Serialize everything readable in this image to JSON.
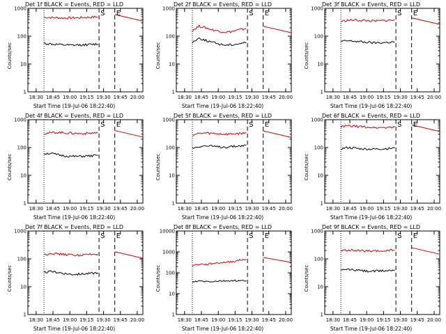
{
  "charts": [
    {
      "id": "1f",
      "title": "Det 1f BLACK = Events, RED = LLD",
      "ylabel": "Counts/sec",
      "xlabel": "Start Time (19-Jul-06 18:22:40)",
      "yticks": [
        "1",
        "10",
        "100",
        "1000"
      ],
      "xticks": [
        "18:30",
        "18:45",
        "19:00",
        "19:15",
        "19:30",
        "19:45",
        "20:00"
      ]
    },
    {
      "id": "2f",
      "title": "Det 2f BLACK = Events, RED = LLD",
      "ylabel": "Counts/sec",
      "xlabel": "Start Time (19-Jul-06 18:22:40)",
      "yticks": [
        "1",
        "10",
        "100",
        "1000"
      ],
      "xticks": [
        "18:30",
        "18:45",
        "19:00",
        "19:15",
        "19:30",
        "19:45",
        "20:00"
      ]
    },
    {
      "id": "3f",
      "title": "Det 3f BLACK = Events, RED = LLD",
      "ylabel": "Counts/sec",
      "xlabel": "Start Time (19-Jul-06 18:22:40)",
      "yticks": [
        "1",
        "10",
        "100",
        "1000"
      ],
      "xticks": [
        "18:30",
        "18:45",
        "19:00",
        "19:15",
        "19:30",
        "19:45",
        "20:00"
      ]
    },
    {
      "id": "4f",
      "title": "Det 4f BLACK = Events, RED = LLD",
      "ylabel": "Counts/sec",
      "xlabel": "Start Time (19-Jul-06 18:22:40)",
      "yticks": [
        "1",
        "10",
        "100",
        "1000"
      ],
      "xticks": [
        "18:30",
        "18:45",
        "19:00",
        "19:15",
        "19:30",
        "19:45",
        "20:00"
      ]
    },
    {
      "id": "5f",
      "title": "Det 5f BLACK = Events, RED = LLD",
      "ylabel": "Counts/sec",
      "xlabel": "Start Time (19-Jul-06 18:22:40)",
      "yticks": [
        "1",
        "10",
        "100",
        "1000"
      ],
      "xticks": [
        "18:30",
        "18:45",
        "19:00",
        "19:15",
        "19:30",
        "19:45",
        "20:00"
      ]
    },
    {
      "id": "6f",
      "title": "Det 6f BLACK = Events, RED = LLD",
      "ylabel": "Counts/sec",
      "xlabel": "Start Time (19-Jul-06 18:22:40)",
      "yticks": [
        "1",
        "10",
        "100",
        "1000"
      ],
      "xticks": [
        "18:30",
        "18:45",
        "19:00",
        "19:15",
        "19:30",
        "19:45",
        "20:00"
      ]
    },
    {
      "id": "7f",
      "title": "Det 7f BLACK = Events, RED = LLD",
      "ylabel": "Counts/sec",
      "xlabel": "Start Time (19-Jul-06 18:22:40)",
      "yticks": [
        "1",
        "10",
        "100",
        "1000"
      ],
      "xticks": [
        "18:30",
        "18:45",
        "19:00",
        "19:15",
        "19:30",
        "19:45",
        "20:00"
      ]
    },
    {
      "id": "8f",
      "title": "Det 8f BLACK = Events, RED = LLD",
      "ylabel": "Counts/sec",
      "xlabel": "Start Time (19-Jul-06 18:22:40)",
      "yticks": [
        "1",
        "10",
        "100",
        "1000",
        "10000"
      ],
      "xticks": [
        "18:30",
        "18:45",
        "19:00",
        "19:15",
        "19:30",
        "19:45",
        "20:00"
      ]
    },
    {
      "id": "9f",
      "title": "Det 9f BLACK = Events, RED = LLD",
      "ylabel": "Counts/sec",
      "xlabel": "Start Time (19-Jul-06 18:22:40)",
      "yticks": [
        "1",
        "10",
        "100",
        "1000"
      ],
      "xticks": [
        "18:30",
        "18:45",
        "19:00",
        "19:15",
        "19:30",
        "19:45",
        "20:00"
      ]
    }
  ],
  "chart_data": [
    {
      "type": "line",
      "panel": "1f",
      "xunit": "time",
      "x_range": [
        "18:22:40",
        "20:05"
      ],
      "ylog": true,
      "ylim": [
        1,
        1000
      ],
      "series": [
        {
          "color": "#cc0000",
          "values": [
            480,
            470,
            460,
            450,
            455,
            460,
            470,
            480,
            500
          ]
        },
        {
          "color": "#000000",
          "values": [
            55,
            52,
            50,
            48,
            47,
            48,
            49,
            50,
            52
          ]
        }
      ],
      "markers": [
        {
          "label": "S",
          "x": "19:26"
        },
        {
          "label": "E",
          "x": "19:40"
        }
      ],
      "vlines_dotted": [
        "18:37"
      ],
      "vlines_dashed": [
        "19:26",
        "19:40"
      ]
    },
    {
      "type": "line",
      "panel": "2f",
      "xunit": "time",
      "x_range": [
        "18:22:40",
        "20:05"
      ],
      "ylog": true,
      "ylim": [
        1,
        1000
      ],
      "series": [
        {
          "color": "#cc0000",
          "values": [
            160,
            230,
            200,
            170,
            150,
            140,
            150,
            170,
            190
          ]
        },
        {
          "color": "#000000",
          "values": [
            60,
            85,
            70,
            60,
            52,
            48,
            50,
            55,
            60
          ]
        }
      ],
      "markers": [
        {
          "label": "S",
          "x": "19:26"
        },
        {
          "label": "E",
          "x": "19:40"
        }
      ],
      "vlines_dotted": [
        "18:37"
      ],
      "vlines_dashed": [
        "19:26",
        "19:40"
      ]
    },
    {
      "type": "line",
      "panel": "3f",
      "xunit": "time",
      "x_range": [
        "18:22:40",
        "20:05"
      ],
      "ylog": true,
      "ylim": [
        1,
        1000
      ],
      "series": [
        {
          "color": "#cc0000",
          "values": [
            340,
            370,
            380,
            370,
            360,
            350,
            360,
            370,
            380
          ]
        },
        {
          "color": "#000000",
          "values": [
            65,
            68,
            66,
            63,
            60,
            58,
            58,
            60,
            62
          ]
        }
      ],
      "markers": [
        {
          "label": "S",
          "x": "19:26"
        },
        {
          "label": "E",
          "x": "19:40"
        }
      ],
      "vlines_dotted": [
        "18:37"
      ],
      "vlines_dashed": [
        "19:26",
        "19:40"
      ]
    },
    {
      "type": "line",
      "panel": "4f",
      "xunit": "time",
      "x_range": [
        "18:22:40",
        "20:05"
      ],
      "ylog": true,
      "ylim": [
        1,
        1000
      ],
      "series": [
        {
          "color": "#cc0000",
          "values": [
            320,
            340,
            350,
            340,
            330,
            320,
            320,
            330,
            340
          ]
        },
        {
          "color": "#000000",
          "values": [
            60,
            62,
            55,
            50,
            48,
            48,
            49,
            50,
            52
          ]
        }
      ],
      "markers": [
        {
          "label": "S",
          "x": "19:26"
        },
        {
          "label": "E",
          "x": "19:40"
        }
      ],
      "vlines_dotted": [
        "18:37"
      ],
      "vlines_dashed": [
        "19:26",
        "19:40"
      ]
    },
    {
      "type": "line",
      "panel": "5f",
      "xunit": "time",
      "x_range": [
        "18:22:40",
        "20:05"
      ],
      "ylog": true,
      "ylim": [
        1,
        1000
      ],
      "series": [
        {
          "color": "#cc0000",
          "values": [
            290,
            320,
            330,
            320,
            310,
            300,
            310,
            320,
            330
          ]
        },
        {
          "color": "#000000",
          "values": [
            95,
            110,
            115,
            110,
            105,
            105,
            110,
            115,
            120
          ]
        }
      ],
      "markers": [
        {
          "label": "S",
          "x": "19:26"
        },
        {
          "label": "E",
          "x": "19:40"
        }
      ],
      "vlines_dotted": [
        "18:37"
      ],
      "vlines_dashed": [
        "19:26",
        "19:40"
      ]
    },
    {
      "type": "line",
      "panel": "6f",
      "xunit": "time",
      "x_range": [
        "18:22:40",
        "20:05"
      ],
      "ylog": true,
      "ylim": [
        1,
        1000
      ],
      "series": [
        {
          "color": "#cc0000",
          "values": [
            560,
            600,
            580,
            560,
            540,
            520,
            520,
            530,
            540
          ]
        },
        {
          "color": "#000000",
          "values": [
            90,
            100,
            95,
            90,
            88,
            88,
            90,
            92,
            95
          ]
        }
      ],
      "markers": [
        {
          "label": "S",
          "x": "19:26"
        },
        {
          "label": "E",
          "x": "19:40"
        }
      ],
      "vlines_dotted": [
        "18:37"
      ],
      "vlines_dashed": [
        "19:26",
        "19:40"
      ]
    },
    {
      "type": "line",
      "panel": "7f",
      "xunit": "time",
      "x_range": [
        "18:22:40",
        "20:05"
      ],
      "ylog": true,
      "ylim": [
        1,
        1000
      ],
      "series": [
        {
          "color": "#cc0000",
          "values": [
            140,
            160,
            150,
            145,
            140,
            135,
            140,
            145,
            150
          ]
        },
        {
          "color": "#000000",
          "values": [
            32,
            35,
            33,
            30,
            28,
            28,
            29,
            30,
            32
          ]
        }
      ],
      "markers": [
        {
          "label": "S",
          "x": "19:26"
        },
        {
          "label": "E",
          "x": "19:40"
        }
      ],
      "vlines_dotted": [
        "18:37"
      ],
      "vlines_dashed": [
        "19:26",
        "19:40"
      ]
    },
    {
      "type": "line",
      "panel": "8f",
      "xunit": "time",
      "x_range": [
        "18:22:40",
        "20:05"
      ],
      "ylog": true,
      "ylim": [
        1,
        10000
      ],
      "series": [
        {
          "color": "#cc0000",
          "values": [
            220,
            260,
            250,
            280,
            300,
            320,
            350,
            400,
            450
          ]
        },
        {
          "color": "#000000",
          "values": [
            35,
            40,
            38,
            38,
            40,
            40,
            42,
            40,
            42
          ]
        }
      ],
      "markers": [
        {
          "label": "S",
          "x": "19:26"
        },
        {
          "label": "E",
          "x": "19:40"
        }
      ],
      "vlines_dotted": [
        "18:37"
      ],
      "vlines_dashed": [
        "19:26",
        "19:40"
      ]
    },
    {
      "type": "line",
      "panel": "9f",
      "xunit": "time",
      "x_range": [
        "18:22:40",
        "20:05"
      ],
      "ylog": true,
      "ylim": [
        1,
        1000
      ],
      "series": [
        {
          "color": "#cc0000",
          "values": [
            190,
            210,
            200,
            195,
            190,
            185,
            190,
            200,
            210
          ]
        },
        {
          "color": "#000000",
          "values": [
            38,
            42,
            40,
            38,
            36,
            36,
            37,
            38,
            40
          ]
        }
      ],
      "markers": [
        {
          "label": "S",
          "x": "19:26"
        },
        {
          "label": "E",
          "x": "19:40"
        }
      ],
      "vlines_dotted": [
        "18:37"
      ],
      "vlines_dashed": [
        "19:26",
        "19:40"
      ]
    }
  ]
}
